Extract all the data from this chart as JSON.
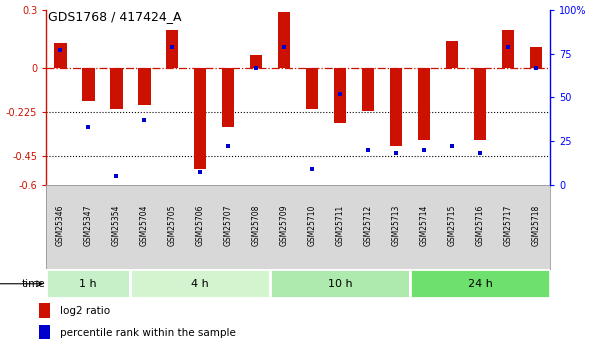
{
  "title": "GDS1768 / 417424_A",
  "samples": [
    "GSM25346",
    "GSM25347",
    "GSM25354",
    "GSM25704",
    "GSM25705",
    "GSM25706",
    "GSM25707",
    "GSM25708",
    "GSM25709",
    "GSM25710",
    "GSM25711",
    "GSM25712",
    "GSM25713",
    "GSM25714",
    "GSM25715",
    "GSM25716",
    "GSM25717",
    "GSM25718"
  ],
  "log2_ratio": [
    0.13,
    -0.17,
    -0.21,
    -0.19,
    0.2,
    -0.52,
    -0.3,
    0.07,
    0.29,
    -0.21,
    -0.28,
    -0.22,
    -0.4,
    -0.37,
    0.14,
    -0.37,
    0.2,
    0.11
  ],
  "percentile_rank": [
    77,
    33,
    5,
    37,
    79,
    7,
    22,
    67,
    79,
    9,
    52,
    20,
    18,
    20,
    22,
    18,
    79,
    67
  ],
  "groups": [
    {
      "label": "1 h",
      "start": 0,
      "end": 3,
      "color": "#c8f0c8"
    },
    {
      "label": "4 h",
      "start": 3,
      "end": 8,
      "color": "#d4f4d0"
    },
    {
      "label": "10 h",
      "start": 8,
      "end": 13,
      "color": "#aeeaae"
    },
    {
      "label": "24 h",
      "start": 13,
      "end": 18,
      "color": "#6ee06e"
    }
  ],
  "ylim_left": [
    -0.6,
    0.3
  ],
  "ylim_right": [
    0,
    100
  ],
  "yticks_left": [
    0.3,
    0.0,
    -0.225,
    -0.45,
    -0.6
  ],
  "ytick_labels_left": [
    "0.3",
    "0",
    "-0.225",
    "-0.45",
    "-0.6"
  ],
  "yticks_right": [
    100,
    75,
    50,
    25,
    0
  ],
  "ytick_labels_right": [
    "100%",
    "75",
    "50",
    "25",
    "0"
  ],
  "bar_color": "#cc1100",
  "dot_color": "#0000cc",
  "legend_bar_label": "log2 ratio",
  "legend_dot_label": "percentile rank within the sample",
  "time_label": "time",
  "sample_bg": "#d8d8d8",
  "main_bg": "#ffffff"
}
